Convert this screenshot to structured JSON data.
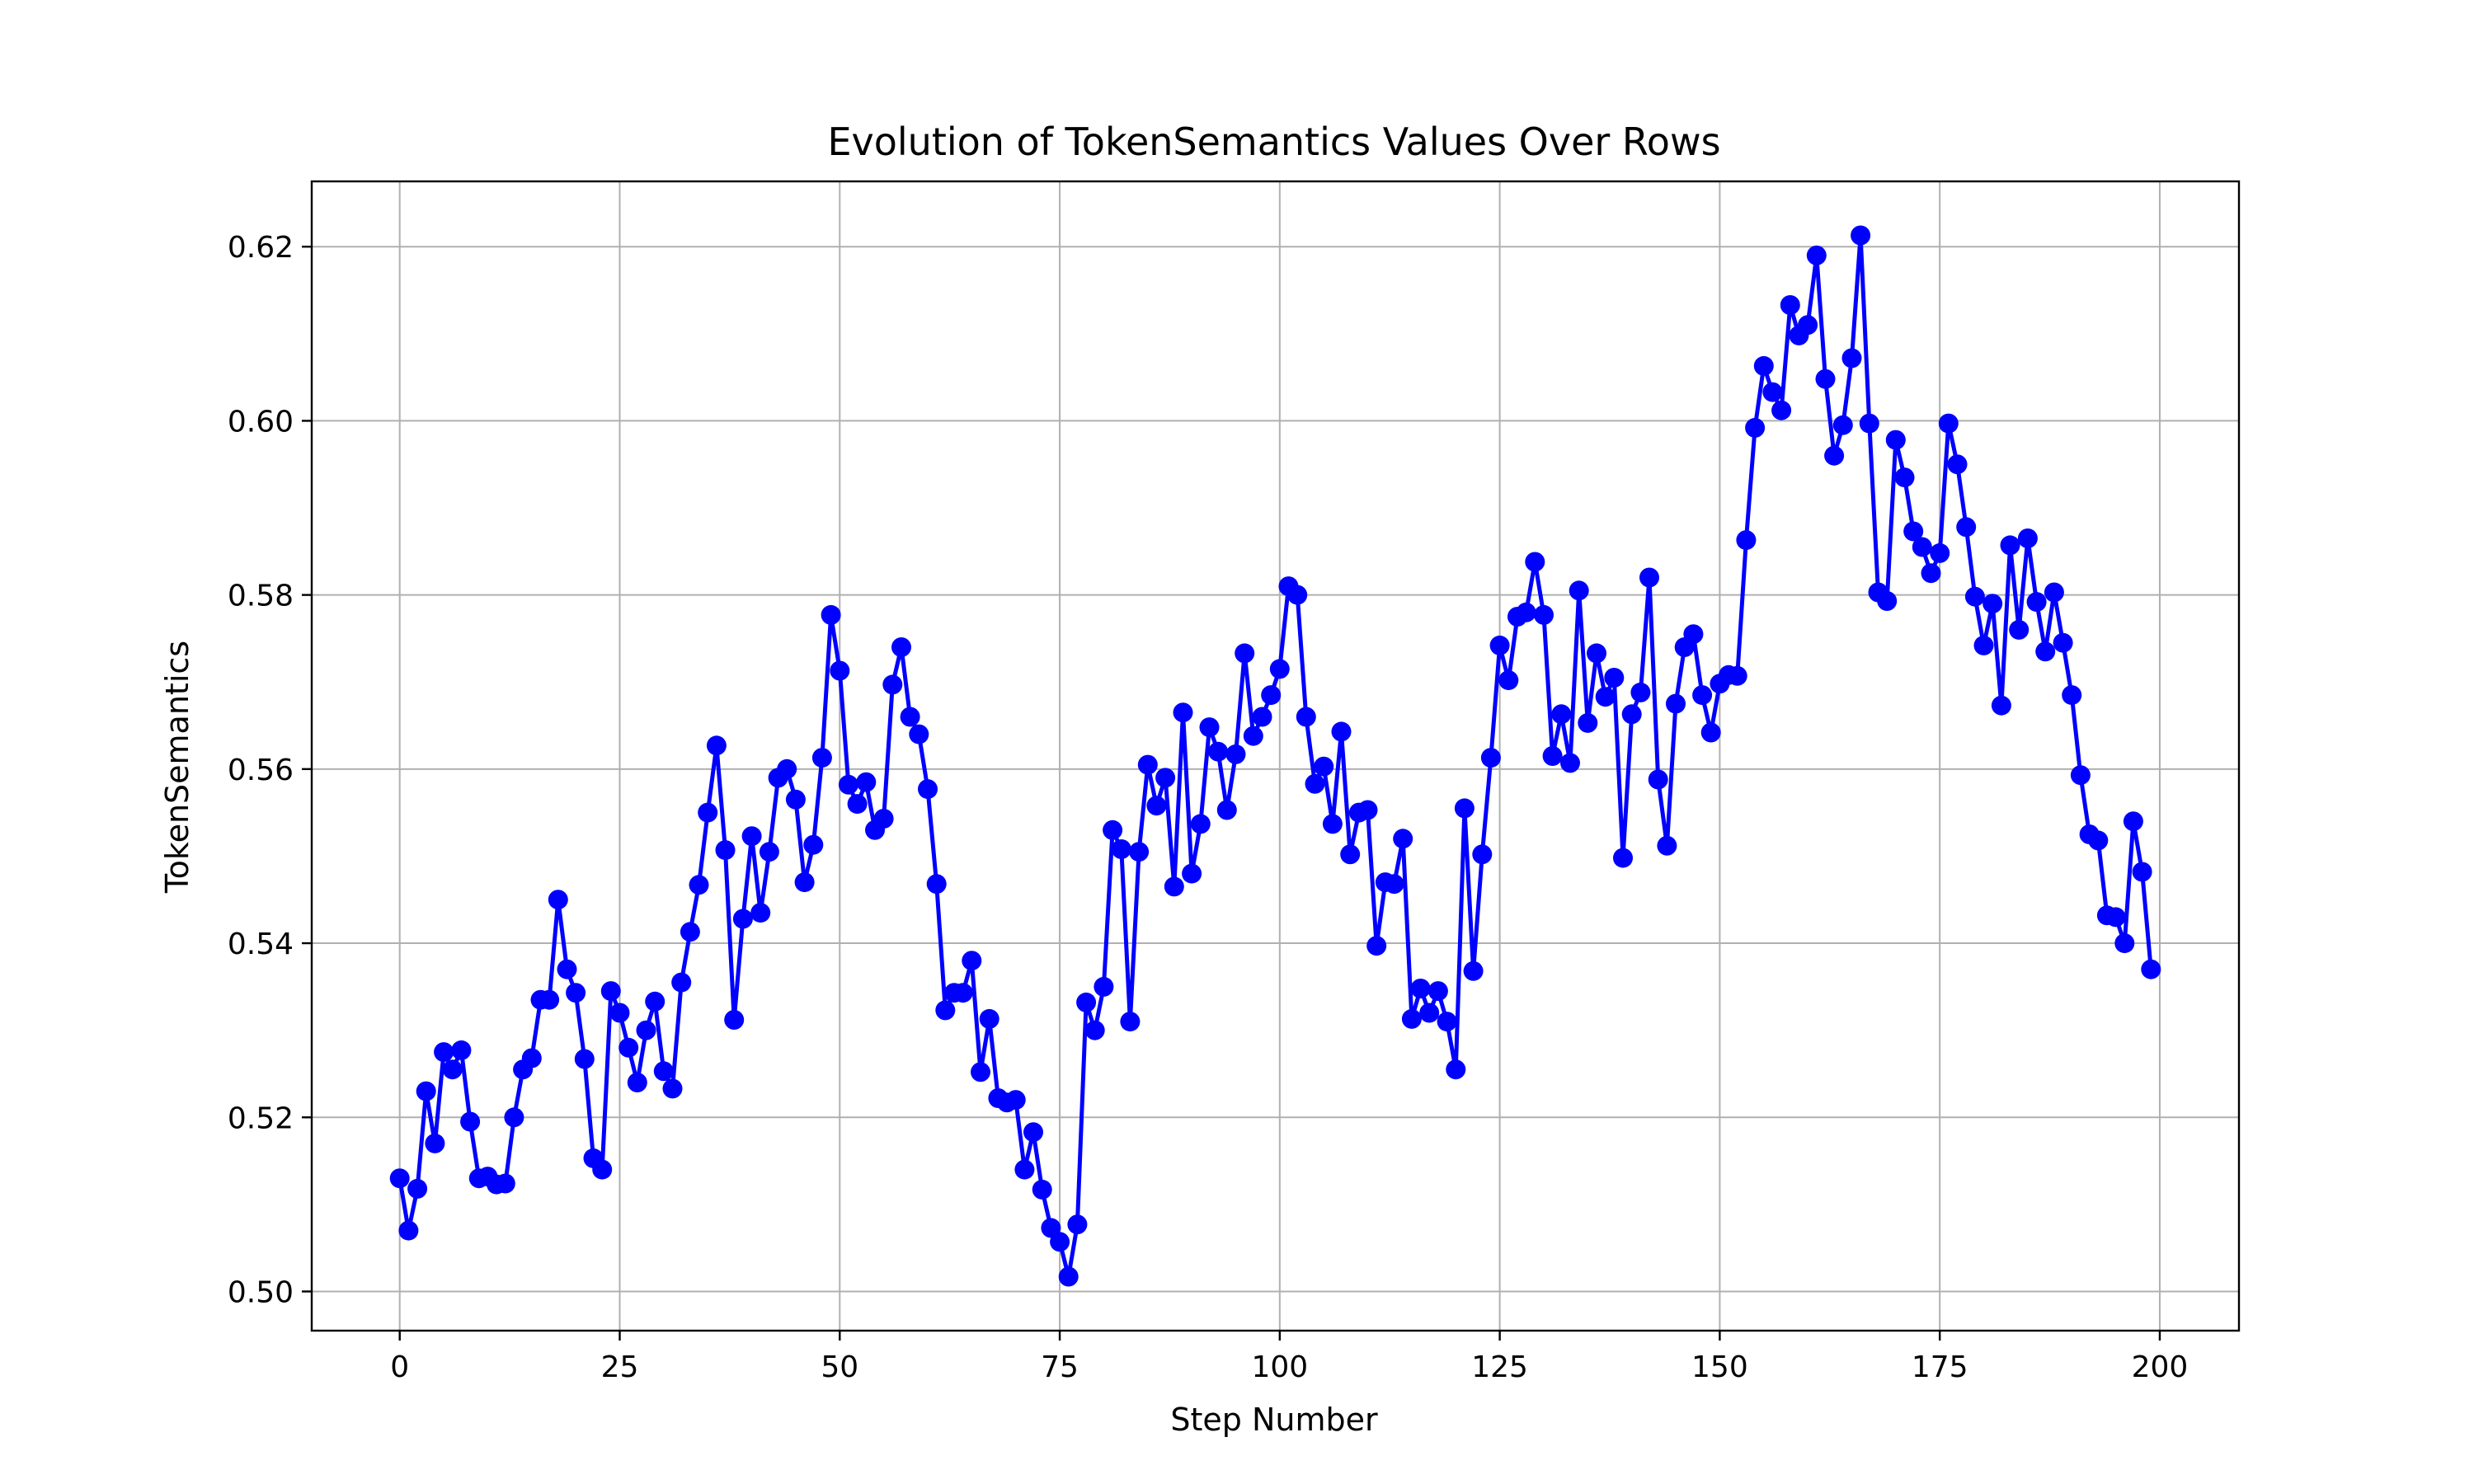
{
  "chart_data": {
    "type": "line",
    "title": "Evolution of TokenSemantics Values Over Rows",
    "xlabel": "Step Number",
    "ylabel": "TokenSemantics",
    "xlim": [
      -10,
      209
    ],
    "ylim": [
      0.4955,
      0.6275
    ],
    "x_ticks": [
      0,
      25,
      50,
      75,
      100,
      125,
      150,
      175,
      200
    ],
    "x_tick_labels": [
      "0",
      "25",
      "50",
      "75",
      "100",
      "125",
      "150",
      "175",
      "200"
    ],
    "y_ticks": [
      0.5,
      0.52,
      0.54,
      0.56,
      0.58,
      0.6,
      0.62
    ],
    "y_tick_labels": [
      "0.50",
      "0.52",
      "0.54",
      "0.56",
      "0.58",
      "0.60",
      "0.62"
    ],
    "grid": true,
    "marker": "circle",
    "series": [
      {
        "color": "#0000ff",
        "x_start": 0,
        "x_step": 1,
        "values": [
          0.513,
          0.507,
          0.5118,
          0.523,
          0.517,
          0.5275,
          0.5255,
          0.5277,
          0.5195,
          0.513,
          0.5132,
          0.5123,
          0.5124,
          0.52,
          0.5255,
          0.5268,
          0.5335,
          0.5335,
          0.545,
          0.537,
          0.5343,
          0.5267,
          0.5153,
          0.514,
          0.5345,
          0.532,
          0.528,
          0.524,
          0.53,
          0.5333,
          0.5253,
          0.5233,
          0.5355,
          0.5413,
          0.5467,
          0.555,
          0.5627,
          0.5507,
          0.5312,
          0.5428,
          0.5523,
          0.5435,
          0.5505,
          0.559,
          0.56,
          0.5565,
          0.547,
          0.5513,
          0.5613,
          0.5777,
          0.5713,
          0.5582,
          0.556,
          0.5585,
          0.553,
          0.5543,
          0.5697,
          0.574,
          0.566,
          0.564,
          0.5577,
          0.5468,
          0.5323,
          0.5343,
          0.5343,
          0.538,
          0.5252,
          0.5313,
          0.5222,
          0.5217,
          0.522,
          0.514,
          0.5183,
          0.5117,
          0.5073,
          0.5057,
          0.5017,
          0.5077,
          0.5332,
          0.53,
          0.535,
          0.553,
          0.5508,
          0.531,
          0.5505,
          0.5605,
          0.5558,
          0.559,
          0.5465,
          0.5665,
          0.548,
          0.5537,
          0.5648,
          0.562,
          0.5553,
          0.5617,
          0.5733,
          0.5638,
          0.566,
          0.5685,
          0.5715,
          0.581,
          0.58,
          0.566,
          0.5583,
          0.5603,
          0.5537,
          0.5643,
          0.5502,
          0.555,
          0.5553,
          0.5397,
          0.547,
          0.5468,
          0.552,
          0.5313,
          0.5348,
          0.532,
          0.5345,
          0.531,
          0.5255,
          0.5555,
          0.5368,
          0.5502,
          0.5613,
          0.5742,
          0.5702,
          0.5775,
          0.578,
          0.5838,
          0.5777,
          0.5615,
          0.5663,
          0.5607,
          0.5805,
          0.5653,
          0.5733,
          0.5683,
          0.5705,
          0.5498,
          0.5663,
          0.5688,
          0.582,
          0.5588,
          0.5512,
          0.5675,
          0.574,
          0.5755,
          0.5685,
          0.5642,
          0.5698,
          0.5708,
          0.5707,
          0.5863,
          0.5992,
          0.6063,
          0.6033,
          0.6012,
          0.6133,
          0.6098,
          0.611,
          0.619,
          0.6048,
          0.596,
          0.5995,
          0.6072,
          0.6213,
          0.5997,
          0.5803,
          0.5793,
          0.5978,
          0.5935,
          0.5873,
          0.5855,
          0.5825,
          0.5848,
          0.5997,
          0.595,
          0.5878,
          0.5798,
          0.5742,
          0.579,
          0.5673,
          0.5857,
          0.576,
          0.5865,
          0.5792,
          0.5735,
          0.5803,
          0.5745,
          0.5685,
          0.5593,
          0.5525,
          0.5518,
          0.5432,
          0.543,
          0.54,
          0.554,
          0.5482,
          0.537
        ]
      }
    ]
  }
}
